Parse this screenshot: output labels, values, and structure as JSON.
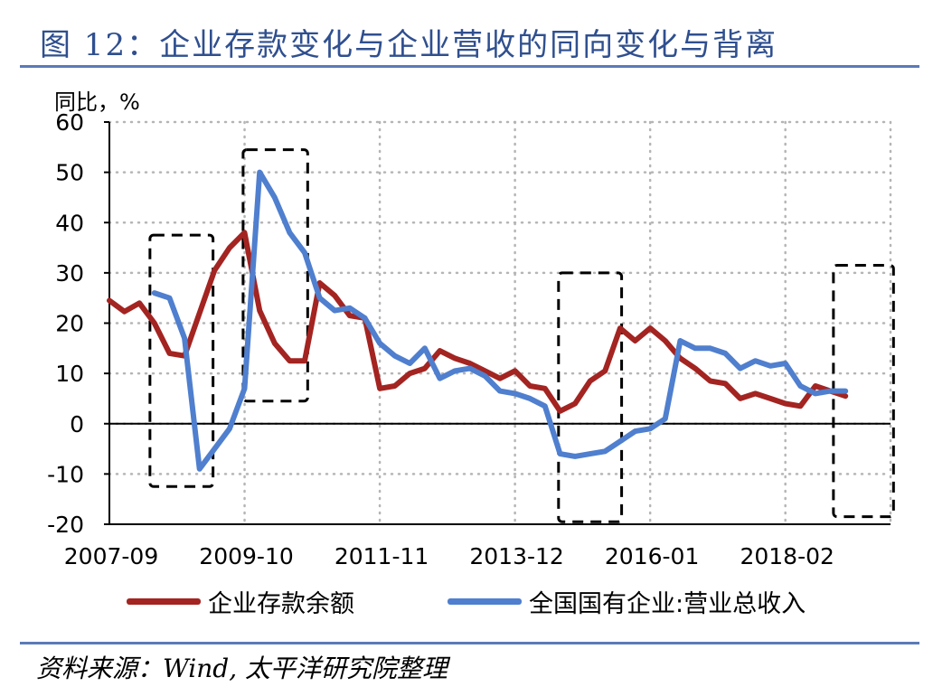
{
  "header": {
    "title": "图 12：企业存款变化与企业营收的同向变化与背离"
  },
  "footer": {
    "source": "资料来源：Wind, 太平洋研究院整理"
  },
  "chart_data": {
    "type": "line",
    "ylabel": "同比，%",
    "xlabel": "",
    "ylim": [
      -20,
      60
    ],
    "yticks": [
      60,
      50,
      40,
      30,
      20,
      10,
      0,
      -10,
      -20
    ],
    "x_tick_labels": [
      "2007-09",
      "2009-10",
      "2011-11",
      "2013-12",
      "2016-01",
      "2018-02"
    ],
    "x_tick_positions": [
      0,
      9,
      18,
      27,
      36,
      45
    ],
    "x_count": 53,
    "grid": "dotted",
    "legend_position": "bottom",
    "series": [
      {
        "name": "企业存款余额",
        "color": "#a32421",
        "values": [
          24.5,
          22.3,
          24.0,
          20.0,
          14.0,
          13.5,
          22.0,
          30.5,
          35.0,
          38.0,
          22.5,
          16.0,
          12.5,
          12.5,
          28.0,
          25.5,
          21.5,
          21.0,
          7.0,
          7.5,
          10.0,
          11.0,
          14.5,
          13.0,
          12.0,
          10.5,
          9.0,
          10.5,
          7.5,
          7.0,
          2.5,
          4.0,
          8.5,
          10.5,
          19.0,
          16.5,
          19.0,
          16.5,
          13.0,
          11.0,
          8.5,
          8.0,
          5.0,
          6.0,
          5.0,
          4.0,
          3.5,
          7.5,
          6.5,
          5.5,
          null,
          null,
          null
        ]
      },
      {
        "name": "全国国有企业:营业总收入",
        "color": "#4f7fce",
        "values": [
          null,
          null,
          null,
          26.0,
          25.0,
          17.0,
          -9.0,
          -5.0,
          -1.0,
          7.0,
          50.0,
          45.0,
          38.0,
          34.0,
          25.0,
          22.5,
          23.0,
          21.0,
          16.0,
          13.5,
          12.0,
          15.0,
          9.0,
          10.5,
          11.0,
          9.5,
          6.5,
          6.0,
          5.0,
          3.5,
          -6.0,
          -6.5,
          -6.0,
          -5.5,
          -3.5,
          -1.5,
          -1.0,
          1.0,
          16.5,
          15.0,
          15.0,
          14.0,
          11.0,
          12.5,
          11.5,
          12.0,
          7.5,
          6.0,
          6.5,
          6.5,
          null,
          null,
          null
        ]
      }
    ],
    "highlight_boxes_label": "dashed boxes marking divergence periods"
  }
}
